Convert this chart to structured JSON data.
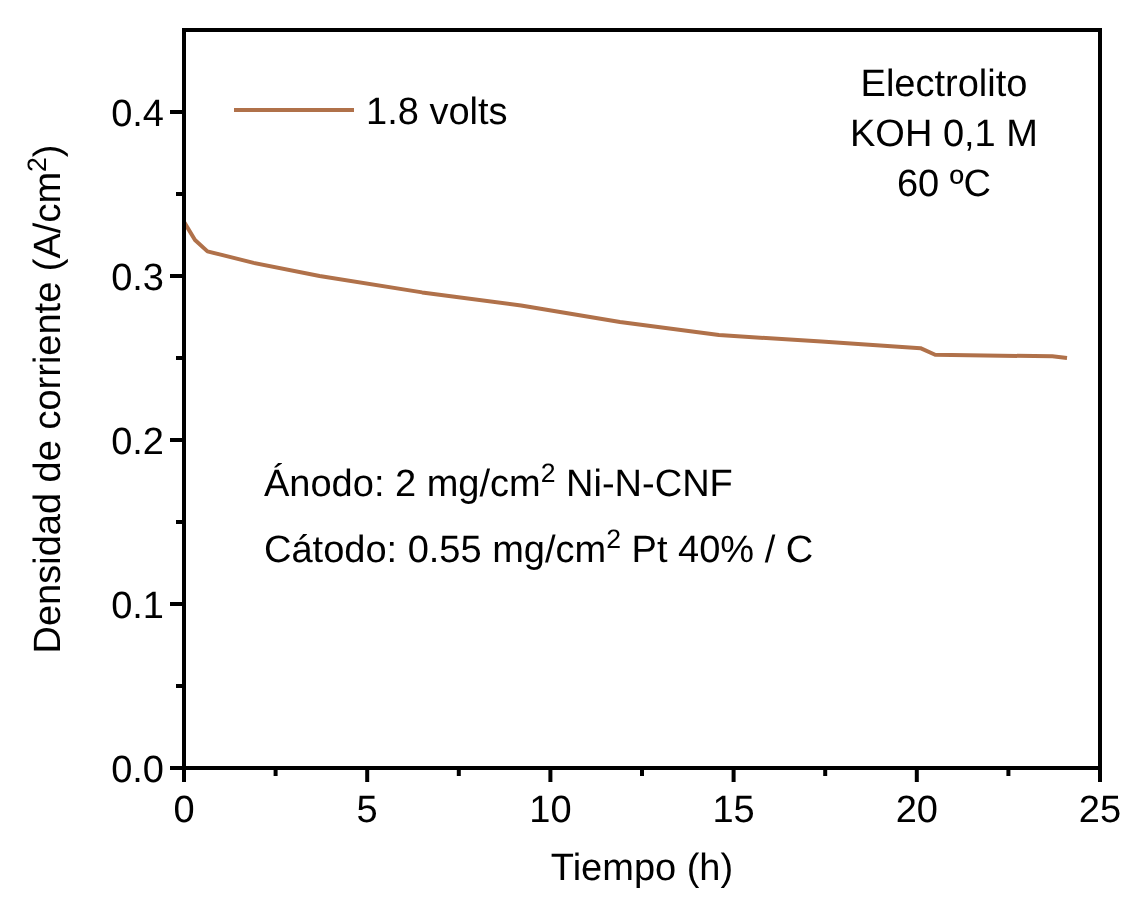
{
  "chart_data": {
    "type": "line",
    "xlabel": "Tiempo (h)",
    "ylabel": "Densidad de corriente (A/cm$^{2}$)",
    "xlim": [
      0,
      25
    ],
    "ylim": [
      0,
      0.45
    ],
    "xticks": [
      0,
      {
        "value": 2.5,
        "label": null
      },
      5,
      {
        "value": 7.5,
        "label": null
      },
      10,
      {
        "value": 12.5,
        "label": null
      },
      15,
      {
        "value": 17.5,
        "label": null
      },
      20,
      {
        "value": 22.5,
        "label": null
      },
      25
    ],
    "yticks": [
      {
        "value": 0,
        "label": "0.0"
      },
      {
        "value": 0.05,
        "label": null
      },
      0.1,
      {
        "value": 0.15,
        "label": null
      },
      0.2,
      {
        "value": 0.25,
        "label": null
      },
      0.3,
      {
        "value": 0.35,
        "label": null
      },
      0.4
    ],
    "x": [
      0,
      0.3,
      0.64,
      1.0,
      1.9,
      3.7,
      6.5,
      9.2,
      11.9,
      14.6,
      17.4,
      20.1,
      20.5,
      23.7,
      24.1
    ],
    "series": [
      {
        "name": "1.8 volts",
        "color": "#b0714a",
        "values": [
          0.333,
          0.322,
          0.315,
          0.313,
          0.308,
          0.3,
          0.29,
          0.282,
          0.272,
          0.264,
          0.26,
          0.256,
          0.252,
          0.251,
          0.25
        ]
      }
    ],
    "legend": "top left",
    "grid": false,
    "annotations": [
      "Electrolito\nKOH 0,1 M\n60 ºC",
      "Ánodo: 2 mg/cm$^{2}$ Ni-N-CNF\nCátodo: 0.55 mg/cm$^{2}$ Pt 40% / C"
    ]
  }
}
